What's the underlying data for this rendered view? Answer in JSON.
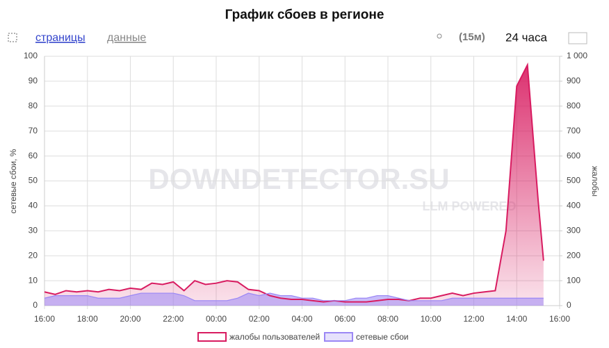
{
  "ui": {
    "nav": [
      "страницы",
      "данные"
    ],
    "interval": "(15м)",
    "range": "24 часа",
    "watermark": [
      "DOWNDETECTOR.SU",
      "LLM POWERED"
    ]
  },
  "chart_data": {
    "type": "area",
    "title": "График сбоев в регионе",
    "y_label": "сетевые сбои, %",
    "y2_label": "жалобы",
    "x": [
      0,
      0.5,
      1,
      1.5,
      2,
      2.5,
      3,
      3.5,
      4,
      4.5,
      5,
      5.5,
      6,
      6.5,
      7,
      7.5,
      8,
      8.5,
      9,
      9.5,
      10,
      10.5,
      11,
      11.5,
      12,
      12.5,
      13,
      13.5,
      14,
      14.5,
      15,
      15.5,
      16,
      16.5,
      17,
      17.5,
      18,
      18.5,
      19,
      19.5,
      20,
      20.5,
      21,
      21.5,
      22,
      22.5,
      23,
      23.25
    ],
    "xlim": [
      0,
      24
    ],
    "xticks": [
      {
        "value": 0,
        "label": "16:00"
      },
      {
        "value": 2,
        "label": "18:00"
      },
      {
        "value": 4,
        "label": "20:00"
      },
      {
        "value": 6,
        "label": "22:00"
      },
      {
        "value": 8,
        "label": "00:00"
      },
      {
        "value": 10,
        "label": "02:00"
      },
      {
        "value": 12,
        "label": "04:00"
      },
      {
        "value": 14,
        "label": "06:00"
      },
      {
        "value": 16,
        "label": "08:00"
      },
      {
        "value": 18,
        "label": "10:00"
      },
      {
        "value": 20,
        "label": "12:00"
      },
      {
        "value": 22,
        "label": "14:00"
      },
      {
        "value": 24,
        "label": "16:00"
      }
    ],
    "ylim": [
      0,
      100
    ],
    "yticks": [
      0,
      10,
      20,
      30,
      40,
      50,
      60,
      70,
      80,
      90,
      100
    ],
    "y2lim": [
      0,
      1000
    ],
    "y2ticks": [
      0,
      100,
      200,
      300,
      400,
      500,
      600,
      700,
      800,
      900,
      {
        "value": 1000,
        "label": "1 000"
      }
    ],
    "grid": true,
    "series": [
      {
        "name": "жалобы пользователей",
        "color": "#d81b60",
        "axis": "y2",
        "values": [
          55,
          45,
          60,
          55,
          60,
          55,
          65,
          60,
          70,
          65,
          90,
          85,
          95,
          60,
          100,
          85,
          90,
          100,
          95,
          65,
          60,
          40,
          30,
          25,
          25,
          20,
          15,
          20,
          15,
          15,
          15,
          20,
          25,
          25,
          20,
          30,
          30,
          40,
          50,
          40,
          50,
          55,
          60,
          300,
          880,
          965,
          420,
          180
        ]
      },
      {
        "name": "сетевые сбои",
        "color": "#9b87f5",
        "values": [
          3,
          4,
          4,
          4,
          4,
          3,
          3,
          3,
          4,
          5,
          5,
          5,
          5,
          4,
          2,
          2,
          2,
          2,
          3,
          5,
          4,
          5,
          4,
          4,
          3,
          3,
          2,
          2,
          2,
          3,
          3,
          4,
          4,
          3,
          2,
          2,
          2,
          2,
          3,
          3,
          3,
          3,
          3,
          3,
          3,
          3,
          3,
          3
        ]
      }
    ]
  }
}
